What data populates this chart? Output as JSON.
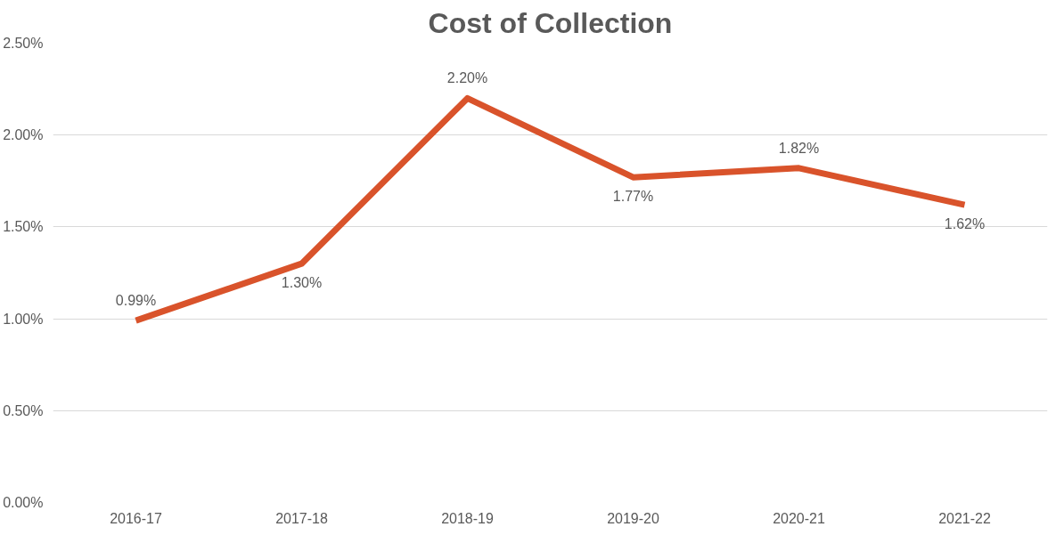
{
  "chart_data": {
    "type": "line",
    "title": "Cost of Collection",
    "categories": [
      "2016-17",
      "2017-18",
      "2018-19",
      "2019-20",
      "2020-21",
      "2021-22"
    ],
    "series": [
      {
        "color": "#d9532b",
        "values": [
          0.99,
          1.3,
          2.2,
          1.77,
          1.82,
          1.62
        ],
        "value_labels": [
          "0.99%",
          "1.30%",
          "2.20%",
          "1.77%",
          "1.82%",
          "1.62%"
        ]
      }
    ],
    "ylim": [
      0,
      2.5
    ],
    "yticks": [
      {
        "value": 0,
        "label": "0.00%"
      },
      {
        "value": 0.5,
        "label": "0.50%"
      },
      {
        "value": 1.0,
        "label": "1.00%"
      },
      {
        "value": 1.5,
        "label": "1.50%"
      },
      {
        "value": 2.0,
        "label": "2.00%"
      },
      {
        "value": 2.5,
        "label": "2.50%"
      }
    ],
    "grid": "y",
    "marker": "none",
    "line_style": "solid"
  }
}
